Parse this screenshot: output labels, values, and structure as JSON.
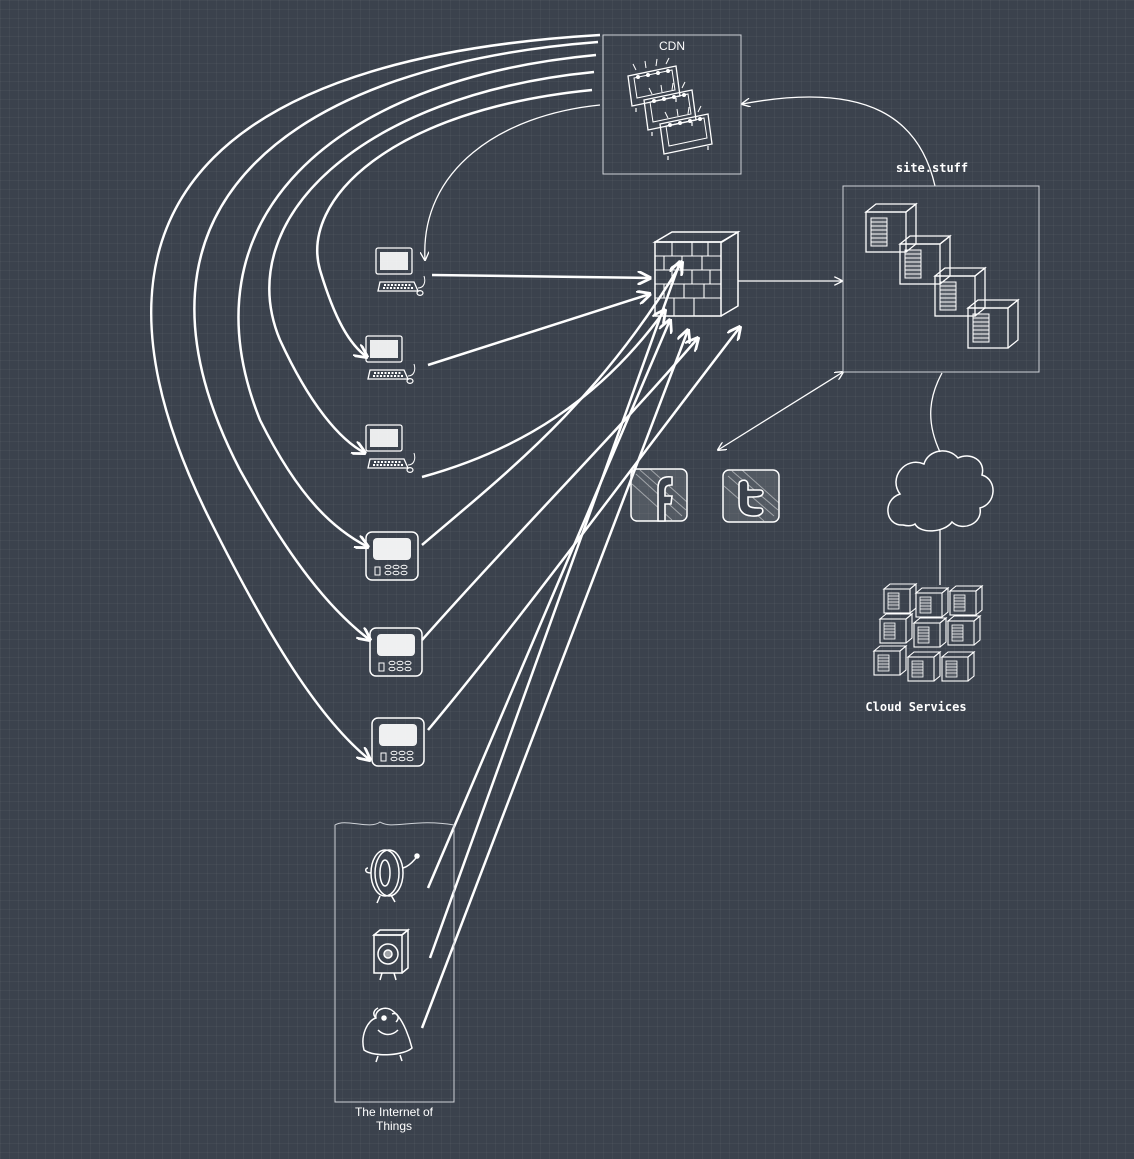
{
  "diagram": {
    "labels": {
      "cdn": "CDN",
      "site": "site.stuff",
      "cloud": "Cloud Services",
      "iot_line1": "The Internet of",
      "iot_line2": "Things"
    },
    "colors": {
      "background": "#3b424d",
      "stroke": "#ffffff"
    },
    "nodes": [
      "cdn-cluster",
      "firewall",
      "site-server-cluster",
      "facebook-logo",
      "twitter-logo",
      "cloud",
      "cloud-server-grid",
      "desktop-computer-1",
      "desktop-computer-2",
      "desktop-computer-3",
      "tablet-1",
      "tablet-2",
      "tablet-3",
      "iot-device-tire",
      "iot-device-speaker",
      "iot-device-creature"
    ]
  }
}
